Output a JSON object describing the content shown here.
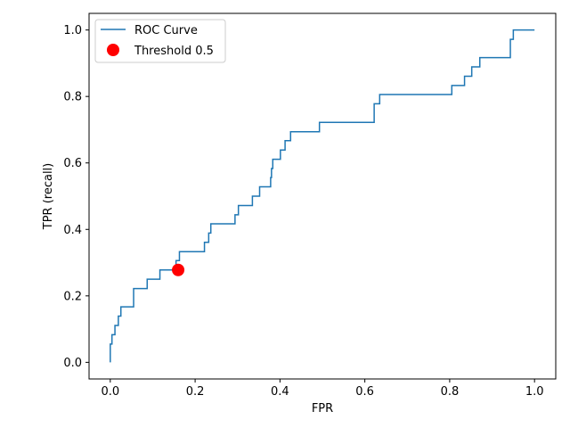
{
  "chart_data": {
    "type": "line",
    "xlabel": "FPR",
    "ylabel": "TPR (recall)",
    "xlim": [
      -0.05,
      1.05
    ],
    "ylim": [
      -0.05,
      1.05
    ],
    "xticks": [
      "0.0",
      "0.2",
      "0.4",
      "0.6",
      "0.8",
      "1.0"
    ],
    "yticks": [
      "0.0",
      "0.2",
      "0.4",
      "0.6",
      "0.8",
      "1.0"
    ],
    "grid": false,
    "legend_position": "top-left",
    "series": [
      {
        "name": "ROC Curve",
        "color": "#1f77b4",
        "style": "step",
        "x": [
          0.0,
          0.0,
          0.004,
          0.004,
          0.011,
          0.011,
          0.019,
          0.019,
          0.025,
          0.025,
          0.033,
          0.033,
          0.055,
          0.055,
          0.087,
          0.087,
          0.117,
          0.117,
          0.155,
          0.155,
          0.163,
          0.163,
          0.222,
          0.222,
          0.232,
          0.232,
          0.237,
          0.237,
          0.294,
          0.294,
          0.302,
          0.302,
          0.335,
          0.335,
          0.352,
          0.352,
          0.378,
          0.378,
          0.38,
          0.38,
          0.383,
          0.383,
          0.401,
          0.401,
          0.412,
          0.412,
          0.425,
          0.425,
          0.493,
          0.493,
          0.622,
          0.622,
          0.635,
          0.635,
          0.805,
          0.805,
          0.835,
          0.835,
          0.852,
          0.852,
          0.871,
          0.871,
          0.943,
          0.943,
          0.95,
          0.95,
          1.0
        ],
        "y": [
          0.0,
          0.055,
          0.055,
          0.083,
          0.083,
          0.111,
          0.111,
          0.139,
          0.139,
          0.167,
          0.167,
          0.167,
          0.167,
          0.222,
          0.222,
          0.25,
          0.25,
          0.278,
          0.278,
          0.306,
          0.306,
          0.333,
          0.333,
          0.361,
          0.361,
          0.389,
          0.389,
          0.417,
          0.417,
          0.444,
          0.444,
          0.472,
          0.472,
          0.5,
          0.5,
          0.528,
          0.528,
          0.556,
          0.556,
          0.583,
          0.583,
          0.611,
          0.611,
          0.639,
          0.639,
          0.667,
          0.667,
          0.694,
          0.694,
          0.722,
          0.722,
          0.778,
          0.778,
          0.806,
          0.806,
          0.833,
          0.833,
          0.861,
          0.861,
          0.889,
          0.889,
          0.917,
          0.917,
          0.972,
          0.972,
          1.0,
          1.0
        ]
      },
      {
        "name": "Threshold 0.5",
        "color": "#ff0000",
        "style": "marker",
        "x": [
          0.16
        ],
        "y": [
          0.278
        ]
      }
    ]
  }
}
